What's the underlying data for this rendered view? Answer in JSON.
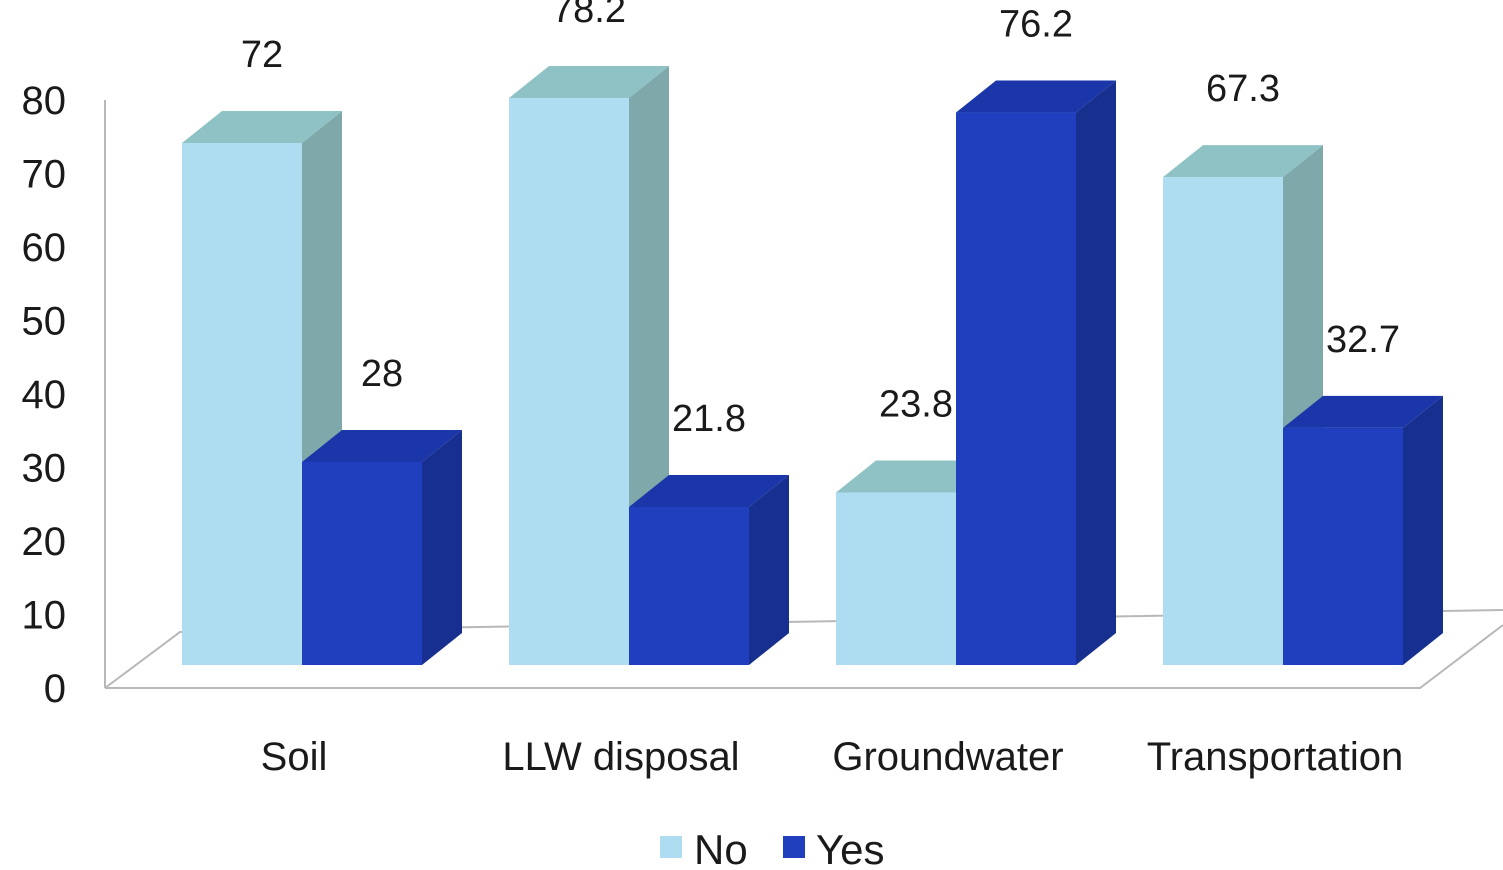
{
  "chart_data": {
    "type": "bar",
    "style": "3d-clustered-column",
    "title": "",
    "xlabel": "",
    "ylabel": "",
    "categories": [
      "Soil",
      "LLW disposal",
      "Groundwater",
      "Transportation"
    ],
    "series": [
      {
        "name": "No",
        "values": [
          72,
          78.2,
          23.8,
          67.3
        ],
        "value_labels": [
          "72",
          "78.2",
          "23.8",
          "67.3"
        ]
      },
      {
        "name": "Yes",
        "values": [
          28,
          21.8,
          76.2,
          32.7
        ],
        "value_labels": [
          "28",
          "21.8",
          "76.2",
          "32.7"
        ]
      }
    ],
    "ylim": [
      0,
      80
    ],
    "yticks": [
      "0",
      "10",
      "20",
      "30",
      "40",
      "50",
      "60",
      "70",
      "80"
    ],
    "grid": false,
    "legend_position": "bottom-center",
    "colors": {
      "No": {
        "front": "#aedcf0",
        "top": "#8fc2c4",
        "side": "#7fa8ab"
      },
      "Yes": {
        "front": "#1f3fbf",
        "top": "#1a36a8",
        "side": "#172f8f"
      },
      "axis": "#b8b8b8"
    }
  }
}
